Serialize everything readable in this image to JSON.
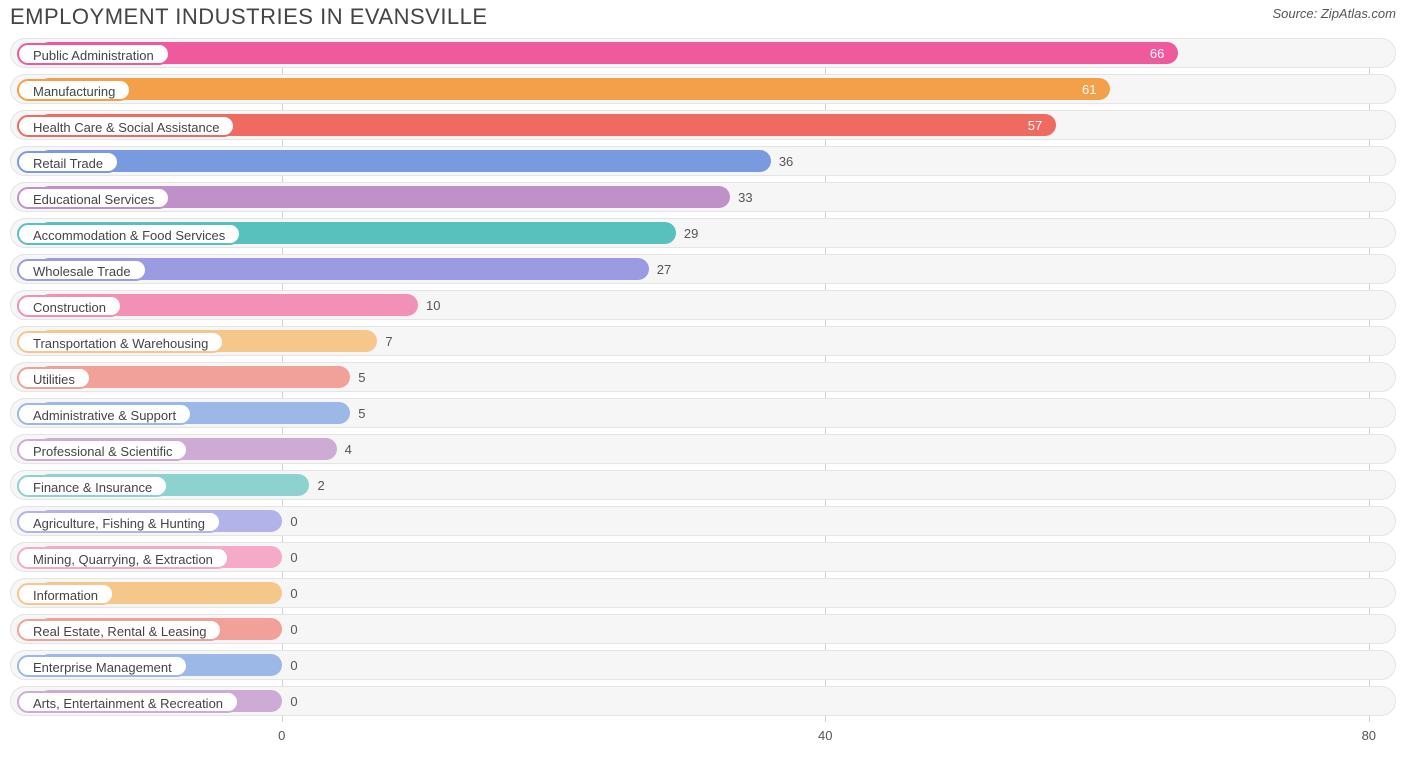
{
  "title": "EMPLOYMENT INDUSTRIES IN EVANSVILLE",
  "source_prefix": "Source: ",
  "source_name": "ZipAtlas.com",
  "chart": {
    "type": "bar-horizontal",
    "x_min": -20,
    "x_max": 82,
    "bar_origin_value": -18,
    "ticks": [
      0,
      40,
      80
    ],
    "grid_color": "#d0d0d0",
    "row_bg": "#f6f6f6",
    "row_border": "#e4e4e4",
    "value_inside_threshold": 45,
    "label_fontsize": 13,
    "title_fontsize": 22,
    "rows": [
      {
        "label": "Public Administration",
        "value": 66,
        "color": "#ef5a9d"
      },
      {
        "label": "Manufacturing",
        "value": 61,
        "color": "#f4a04a"
      },
      {
        "label": "Health Care & Social Assistance",
        "value": 57,
        "color": "#ef6a61"
      },
      {
        "label": "Retail Trade",
        "value": 36,
        "color": "#7a9ae0"
      },
      {
        "label": "Educational Services",
        "value": 33,
        "color": "#c091c8"
      },
      {
        "label": "Accommodation & Food Services",
        "value": 29,
        "color": "#58c0bd"
      },
      {
        "label": "Wholesale Trade",
        "value": 27,
        "color": "#9a9be0"
      },
      {
        "label": "Construction",
        "value": 10,
        "color": "#f290b7"
      },
      {
        "label": "Transportation & Warehousing",
        "value": 7,
        "color": "#f6c78a"
      },
      {
        "label": "Utilities",
        "value": 5,
        "color": "#f2a09a"
      },
      {
        "label": "Administrative & Support",
        "value": 5,
        "color": "#9bb8e6"
      },
      {
        "label": "Professional & Scientific",
        "value": 4,
        "color": "#ceabd4"
      },
      {
        "label": "Finance & Insurance",
        "value": 2,
        "color": "#8ed2cf"
      },
      {
        "label": "Agriculture, Fishing & Hunting",
        "value": 0,
        "color": "#b2b3e8"
      },
      {
        "label": "Mining, Quarrying, & Extraction",
        "value": 0,
        "color": "#f5aac8"
      },
      {
        "label": "Information",
        "value": 0,
        "color": "#f6c78a"
      },
      {
        "label": "Real Estate, Rental & Leasing",
        "value": 0,
        "color": "#f2a09a"
      },
      {
        "label": "Enterprise Management",
        "value": 0,
        "color": "#9bb8e6"
      },
      {
        "label": "Arts, Entertainment & Recreation",
        "value": 0,
        "color": "#ceabd4"
      }
    ]
  }
}
